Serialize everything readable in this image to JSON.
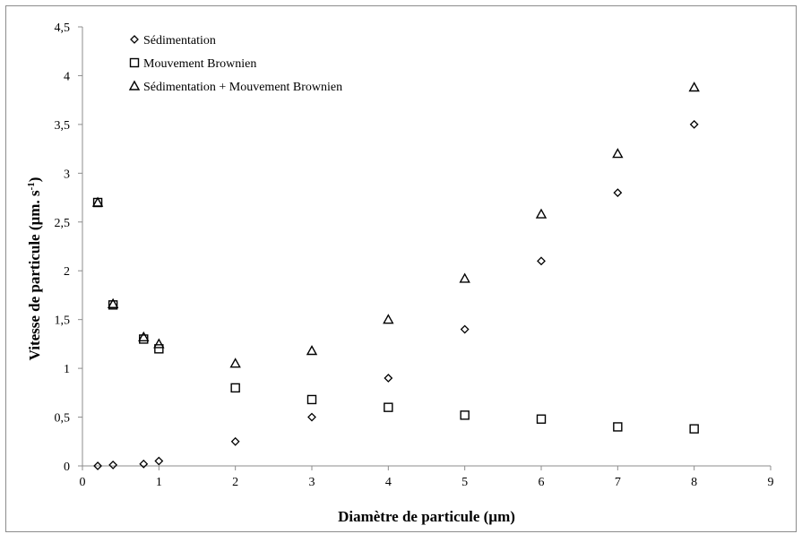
{
  "chart_data": {
    "type": "scatter",
    "title": "",
    "xlabel": "Diamètre de particule (µm)",
    "ylabel_main": "Vitesse de particule (µm. s",
    "ylabel_sup": "-1",
    "ylabel_end": ")",
    "xlim": [
      0,
      9
    ],
    "ylim": [
      0,
      4.5
    ],
    "x_ticks": [
      "0",
      "1",
      "2",
      "3",
      "4",
      "5",
      "6",
      "7",
      "8",
      "9"
    ],
    "y_ticks": [
      "0",
      "0,5",
      "1",
      "1,5",
      "2",
      "2,5",
      "3",
      "3,5",
      "4",
      "4,5"
    ],
    "grid": false,
    "legend_position": "top-left",
    "series": [
      {
        "name": "Sédimentation",
        "marker": "diamond",
        "x": [
          0.2,
          0.4,
          0.8,
          1,
          2,
          3,
          4,
          5,
          6,
          7,
          8
        ],
        "y": [
          0.0,
          0.01,
          0.02,
          0.05,
          0.25,
          0.5,
          0.9,
          1.4,
          2.1,
          2.8,
          3.5
        ]
      },
      {
        "name": "Mouvement Brownien",
        "marker": "square",
        "x": [
          0.2,
          0.4,
          0.8,
          1,
          2,
          3,
          4,
          5,
          6,
          7,
          8
        ],
        "y": [
          2.7,
          1.65,
          1.3,
          1.2,
          0.8,
          0.68,
          0.6,
          0.52,
          0.48,
          0.4,
          0.38
        ]
      },
      {
        "name": "Sédimentation + Mouvement Brownien",
        "marker": "triangle",
        "x": [
          0.2,
          0.4,
          0.8,
          1,
          2,
          3,
          4,
          5,
          6,
          7,
          8
        ],
        "y": [
          2.7,
          1.66,
          1.32,
          1.25,
          1.05,
          1.18,
          1.5,
          1.92,
          2.58,
          3.2,
          3.88
        ]
      }
    ],
    "colors": {
      "marker_stroke": "#000000",
      "axis": "#8c8c8c"
    }
  }
}
